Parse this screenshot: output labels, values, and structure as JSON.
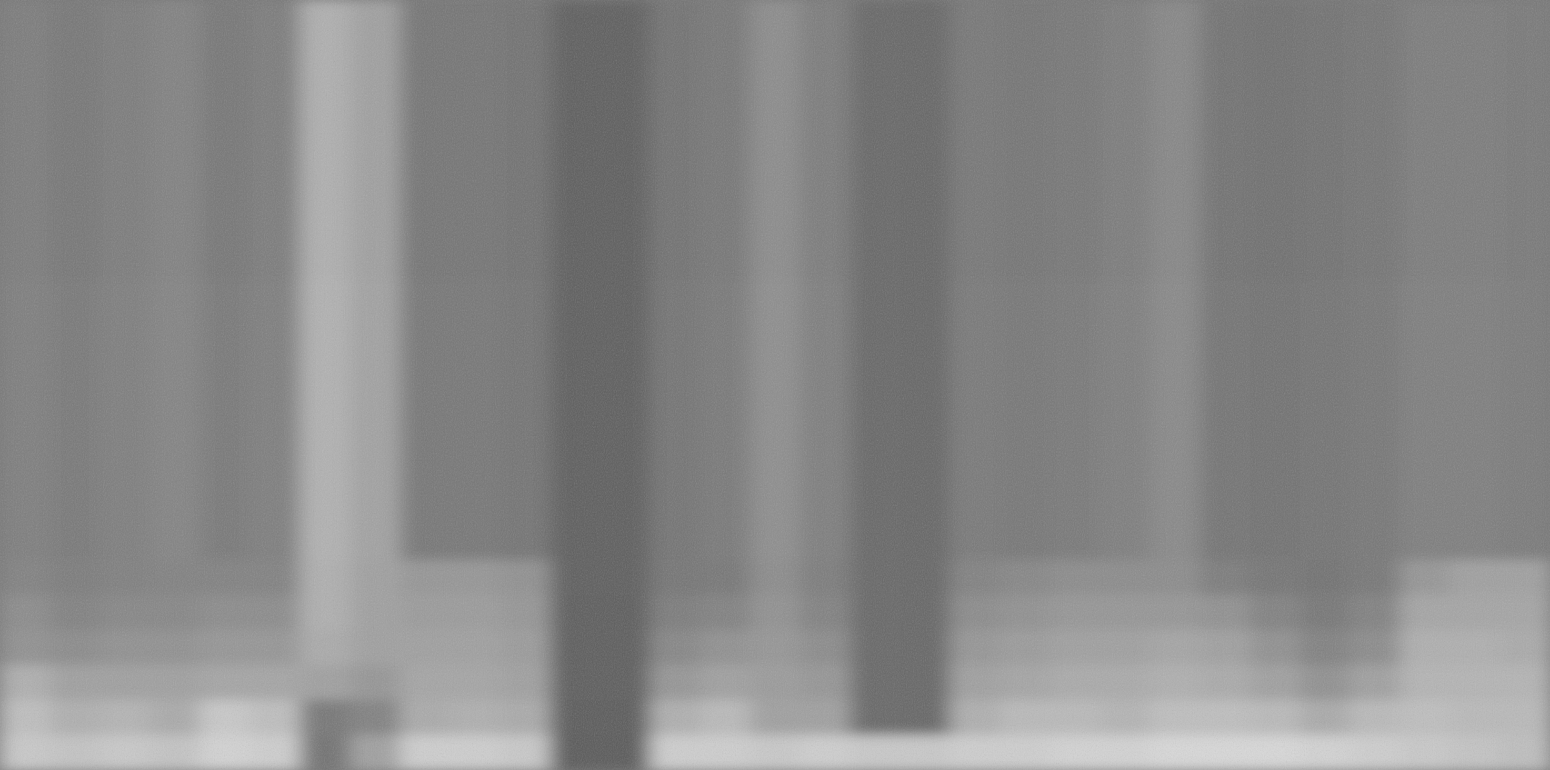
{
  "chart_data": {
    "type": "heatmap",
    "tick_labels": false,
    "zlim": [
      0,
      255
    ],
    "cells": [
      [
        125,
        120,
        125,
        130,
        120,
        125,
        175,
        160,
        118,
        118,
        115,
        97,
        97,
        115,
        120,
        140,
        125,
        105,
        103,
        120,
        118,
        120,
        125,
        135,
        115,
        113,
        115,
        118,
        125,
        125,
        122
      ],
      [
        125,
        120,
        125,
        130,
        120,
        125,
        175,
        160,
        118,
        118,
        115,
        97,
        97,
        115,
        120,
        140,
        125,
        105,
        103,
        120,
        118,
        120,
        125,
        135,
        115,
        113,
        115,
        118,
        125,
        125,
        122
      ],
      [
        125,
        120,
        125,
        130,
        120,
        125,
        175,
        160,
        118,
        118,
        115,
        97,
        97,
        115,
        120,
        140,
        125,
        105,
        103,
        120,
        118,
        120,
        125,
        135,
        115,
        113,
        115,
        118,
        125,
        125,
        122
      ],
      [
        125,
        120,
        125,
        130,
        120,
        125,
        175,
        160,
        118,
        118,
        115,
        97,
        97,
        115,
        120,
        140,
        125,
        105,
        103,
        120,
        118,
        120,
        125,
        135,
        115,
        113,
        115,
        118,
        125,
        125,
        122
      ],
      [
        125,
        120,
        125,
        130,
        120,
        125,
        175,
        160,
        118,
        118,
        115,
        97,
        97,
        115,
        120,
        140,
        125,
        105,
        103,
        120,
        118,
        120,
        125,
        135,
        115,
        113,
        115,
        118,
        125,
        125,
        122
      ],
      [
        125,
        120,
        125,
        130,
        120,
        125,
        175,
        160,
        118,
        118,
        115,
        97,
        97,
        115,
        120,
        140,
        125,
        105,
        103,
        120,
        118,
        120,
        125,
        135,
        115,
        113,
        115,
        118,
        125,
        125,
        122
      ],
      [
        125,
        120,
        125,
        130,
        120,
        125,
        175,
        160,
        118,
        118,
        115,
        97,
        97,
        115,
        120,
        140,
        125,
        105,
        103,
        120,
        118,
        120,
        125,
        135,
        115,
        113,
        115,
        118,
        125,
        125,
        122
      ],
      [
        125,
        120,
        125,
        130,
        120,
        125,
        175,
        160,
        118,
        118,
        115,
        97,
        97,
        115,
        120,
        140,
        125,
        105,
        103,
        120,
        118,
        120,
        125,
        135,
        115,
        113,
        115,
        118,
        125,
        125,
        122
      ],
      [
        127,
        122,
        127,
        132,
        122,
        127,
        177,
        162,
        120,
        120,
        117,
        97,
        97,
        117,
        122,
        142,
        127,
        105,
        103,
        122,
        120,
        122,
        127,
        137,
        117,
        115,
        117,
        120,
        127,
        127,
        124
      ],
      [
        127,
        122,
        127,
        132,
        122,
        127,
        177,
        162,
        120,
        120,
        117,
        97,
        97,
        117,
        122,
        142,
        127,
        105,
        103,
        122,
        120,
        122,
        127,
        137,
        117,
        115,
        117,
        120,
        127,
        127,
        124
      ],
      [
        127,
        122,
        127,
        132,
        122,
        127,
        177,
        162,
        120,
        120,
        117,
        97,
        97,
        117,
        122,
        142,
        127,
        105,
        103,
        122,
        120,
        122,
        127,
        137,
        117,
        115,
        117,
        120,
        127,
        127,
        124
      ],
      [
        127,
        122,
        127,
        132,
        122,
        127,
        177,
        162,
        120,
        120,
        117,
        97,
        97,
        117,
        122,
        142,
        127,
        105,
        103,
        122,
        120,
        122,
        127,
        137,
        117,
        115,
        117,
        120,
        127,
        127,
        124
      ],
      [
        127,
        122,
        127,
        132,
        122,
        127,
        177,
        162,
        120,
        120,
        117,
        97,
        97,
        117,
        122,
        142,
        127,
        105,
        103,
        122,
        120,
        122,
        127,
        137,
        117,
        115,
        117,
        120,
        127,
        127,
        124
      ],
      [
        127,
        122,
        127,
        132,
        122,
        127,
        177,
        162,
        120,
        120,
        117,
        97,
        97,
        117,
        122,
        142,
        127,
        105,
        103,
        122,
        120,
        122,
        127,
        137,
        117,
        115,
        117,
        120,
        127,
        127,
        124
      ],
      [
        127,
        122,
        127,
        132,
        122,
        127,
        177,
        162,
        120,
        120,
        117,
        97,
        97,
        117,
        122,
        142,
        127,
        105,
        103,
        122,
        120,
        122,
        127,
        137,
        117,
        115,
        117,
        120,
        127,
        127,
        124
      ],
      [
        127,
        122,
        127,
        132,
        122,
        127,
        177,
        162,
        120,
        120,
        117,
        97,
        97,
        117,
        122,
        142,
        127,
        105,
        103,
        122,
        120,
        122,
        127,
        137,
        117,
        115,
        117,
        120,
        127,
        127,
        124
      ],
      [
        130,
        125,
        128,
        130,
        130,
        130,
        175,
        160,
        150,
        150,
        145,
        97,
        97,
        118,
        120,
        140,
        125,
        105,
        103,
        130,
        135,
        140,
        140,
        140,
        125,
        118,
        115,
        120,
        150,
        160,
        160
      ],
      [
        140,
        130,
        135,
        135,
        140,
        140,
        175,
        160,
        155,
        155,
        150,
        95,
        95,
        125,
        130,
        145,
        130,
        105,
        103,
        140,
        145,
        150,
        150,
        150,
        145,
        130,
        120,
        130,
        165,
        165,
        165
      ],
      [
        145,
        140,
        145,
        145,
        150,
        150,
        170,
        160,
        160,
        160,
        155,
        95,
        95,
        135,
        145,
        150,
        140,
        105,
        103,
        150,
        155,
        160,
        160,
        165,
        160,
        145,
        130,
        140,
        175,
        175,
        170
      ],
      [
        175,
        160,
        160,
        160,
        165,
        165,
        160,
        150,
        165,
        165,
        160,
        95,
        95,
        150,
        160,
        155,
        150,
        105,
        103,
        160,
        165,
        170,
        170,
        175,
        170,
        160,
        145,
        160,
        180,
        180,
        180
      ],
      [
        190,
        175,
        180,
        170,
        200,
        190,
        120,
        130,
        170,
        175,
        170,
        93,
        93,
        175,
        185,
        160,
        160,
        105,
        103,
        175,
        185,
        185,
        180,
        190,
        190,
        185,
        170,
        185,
        190,
        185,
        185
      ],
      [
        200,
        195,
        200,
        195,
        210,
        205,
        115,
        160,
        205,
        205,
        200,
        92,
        92,
        205,
        205,
        200,
        205,
        200,
        200,
        205,
        205,
        210,
        210,
        215,
        215,
        215,
        210,
        205,
        200,
        195,
        190
      ]
    ]
  }
}
